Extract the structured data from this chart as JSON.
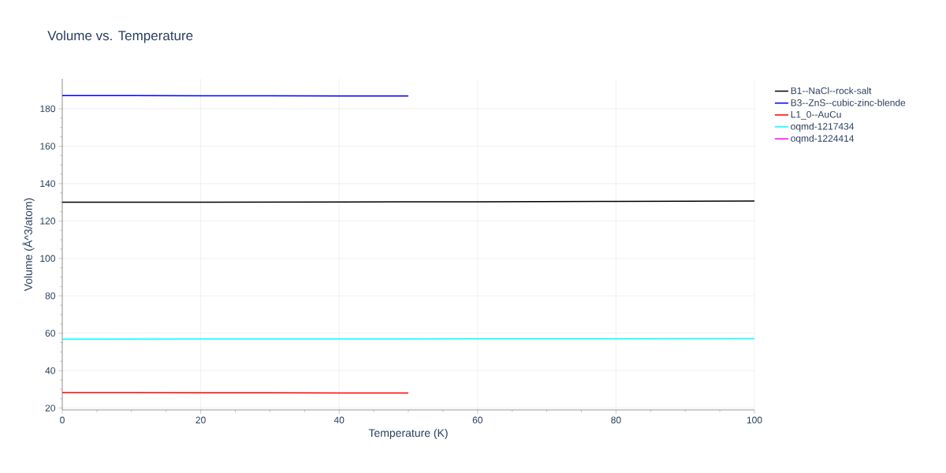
{
  "chart_data": {
    "type": "line",
    "title": "Volume vs. Temperature",
    "xlabel": "Temperature (K)",
    "ylabel": "Volume (Å^3/atom)",
    "series": [
      {
        "name": "B1--NaCl--rock-salt",
        "color": "#000000",
        "x": [
          0,
          20,
          40,
          60,
          80,
          100
        ],
        "values": [
          130.0,
          130.1,
          130.2,
          130.3,
          130.5,
          130.7
        ]
      },
      {
        "name": "B3--ZnS--cubic-zinc-blende",
        "color": "#0000ff",
        "x": [
          0,
          10,
          20,
          30,
          40,
          50
        ],
        "values": [
          187.0,
          187.0,
          186.9,
          186.9,
          186.8,
          186.8
        ]
      },
      {
        "name": "L1_0--AuCu",
        "color": "#ff0000",
        "x": [
          0,
          10,
          20,
          30,
          40,
          50
        ],
        "values": [
          28.3,
          28.3,
          28.2,
          28.2,
          28.1,
          28.1
        ]
      },
      {
        "name": "oqmd-1217434",
        "color": "#00ffff",
        "x": [
          0,
          20,
          40,
          60,
          80,
          100
        ],
        "values": [
          56.8,
          56.9,
          56.9,
          57.0,
          57.0,
          57.1
        ]
      },
      {
        "name": "oqmd-1224414",
        "color": "#ff00ff"
      }
    ],
    "xlim": [
      0,
      100
    ],
    "ylim": [
      19,
      196
    ],
    "xticks": [
      0,
      20,
      40,
      60,
      80,
      100
    ],
    "yticks": [
      20,
      40,
      60,
      80,
      100,
      120,
      140,
      160,
      180
    ],
    "grid": true,
    "legend": "top right",
    "marker": "none",
    "line_style": "solid"
  }
}
